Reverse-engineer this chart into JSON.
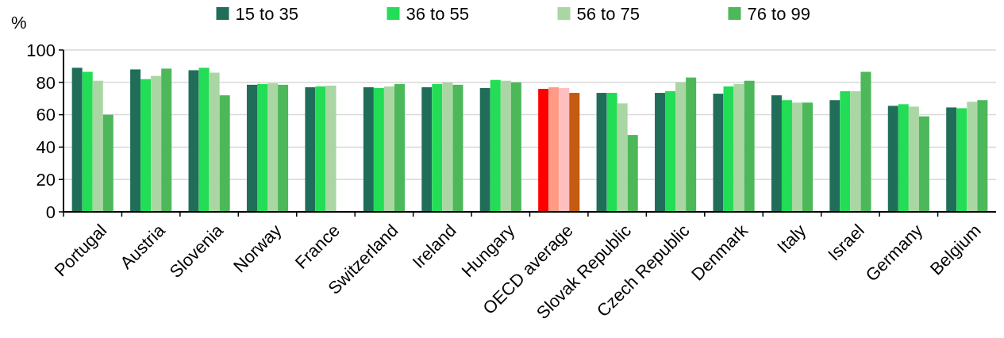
{
  "chart_data": {
    "type": "bar",
    "ylabel": "%",
    "categories": [
      "Portugal",
      "Austria",
      "Slovenia",
      "Norway",
      "France",
      "Switzerland",
      "Ireland",
      "Hungary",
      "OECD average",
      "Slovak Republic",
      "Czech Republic",
      "Denmark",
      "Italy",
      "Israel",
      "Germany",
      "Belgium"
    ],
    "series": [
      {
        "name": "15 to 35",
        "color": "#206e5a",
        "colors": [
          "#206e5a",
          "#206e5a",
          "#206e5a",
          "#206e5a",
          "#206e5a",
          "#206e5a",
          "#206e5a",
          "#206e5a",
          "#ff0000",
          "#206e5a",
          "#206e5a",
          "#206e5a",
          "#206e5a",
          "#206e5a",
          "#206e5a",
          "#206e5a"
        ],
        "values": [
          89,
          88,
          87.5,
          78.5,
          77,
          77,
          77,
          76.5,
          76,
          73.5,
          73.5,
          73,
          72,
          69,
          65.5,
          64.5
        ]
      },
      {
        "name": "36 to 55",
        "color": "#22dd55",
        "colors": [
          "#22dd55",
          "#22dd55",
          "#22dd55",
          "#22dd55",
          "#22dd55",
          "#22dd55",
          "#22dd55",
          "#22dd55",
          "#ff9b85",
          "#22dd55",
          "#22dd55",
          "#22dd55",
          "#22dd55",
          "#22dd55",
          "#22dd55",
          "#22dd55"
        ],
        "values": [
          86.5,
          82,
          89,
          79,
          77.5,
          76.5,
          79,
          81.5,
          77,
          73.5,
          74.5,
          77.5,
          69,
          74.5,
          66.5,
          64
        ]
      },
      {
        "name": "56 to 75",
        "color": "#aad6a4",
        "colors": [
          "#aad6a4",
          "#aad6a4",
          "#aad6a4",
          "#aad6a4",
          "#aad6a4",
          "#aad6a4",
          "#aad6a4",
          "#aad6a4",
          "#ffbfbf",
          "#aad6a4",
          "#aad6a4",
          "#aad6a4",
          "#aad6a4",
          "#aad6a4",
          "#aad6a4",
          "#aad6a4"
        ],
        "values": [
          81,
          84,
          86,
          79.5,
          78,
          77.5,
          80,
          81,
          76.5,
          67,
          80,
          79,
          67.5,
          74.5,
          65,
          68
        ]
      },
      {
        "name": "76 to 99",
        "color": "#4cb85a",
        "colors": [
          "#4cb85a",
          "#4cb85a",
          "#4cb85a",
          "#4cb85a",
          null,
          "#4cb85a",
          "#4cb85a",
          "#4cb85a",
          "#c55a11",
          "#4cb85a",
          "#4cb85a",
          "#4cb85a",
          "#4cb85a",
          "#4cb85a",
          "#4cb85a",
          "#4cb85a"
        ],
        "values": [
          60,
          88.5,
          72,
          78.5,
          null,
          79,
          78.5,
          80,
          73.5,
          47.5,
          83,
          81,
          67.5,
          86.5,
          59,
          69
        ]
      }
    ],
    "ylim": [
      0,
      100
    ],
    "yticks": [
      0,
      20,
      40,
      60,
      80,
      100
    ],
    "grid": "y",
    "legend": "top"
  }
}
